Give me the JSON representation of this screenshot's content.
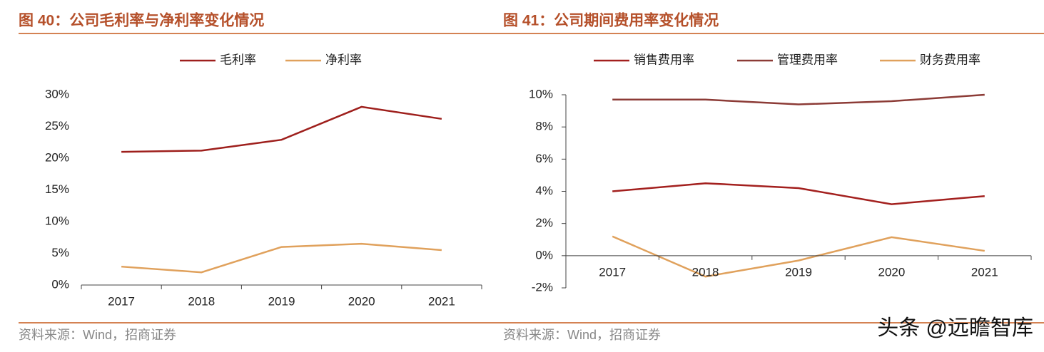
{
  "chart_data": [
    {
      "type": "line",
      "title": "图 40：公司毛利率与净利率变化情况",
      "source": "资料来源：Wind，招商证券",
      "categories": [
        "2017",
        "2018",
        "2019",
        "2020",
        "2021"
      ],
      "series": [
        {
          "name": "毛利率",
          "color": "#9e1f1c",
          "values": [
            21.0,
            21.2,
            22.9,
            28.1,
            26.2
          ]
        },
        {
          "name": "净利率",
          "color": "#e0a15c",
          "values": [
            2.9,
            2.0,
            6.0,
            6.5,
            5.5
          ]
        }
      ],
      "ylim": [
        0,
        30
      ],
      "yticks": [
        {
          "value": 0,
          "label": "0%"
        },
        {
          "value": 5,
          "label": "5%"
        },
        {
          "value": 10,
          "label": "10%"
        },
        {
          "value": 15,
          "label": "15%"
        },
        {
          "value": 20,
          "label": "20%"
        },
        {
          "value": 25,
          "label": "25%"
        },
        {
          "value": 30,
          "label": "30%"
        }
      ],
      "grid": false,
      "legend": "top"
    },
    {
      "type": "line",
      "title": "图 41：公司期间费用率变化情况",
      "source": "资料来源：Wind，招商证券",
      "categories": [
        "2017",
        "2018",
        "2019",
        "2020",
        "2021"
      ],
      "series": [
        {
          "name": "销售费用率",
          "color": "#a3201e",
          "values": [
            4.0,
            4.5,
            4.2,
            3.2,
            3.7
          ]
        },
        {
          "name": "管理费用率",
          "color": "#8c3b36",
          "values": [
            9.7,
            9.7,
            9.4,
            9.6,
            10.0
          ]
        },
        {
          "name": "财务费用率",
          "color": "#e0a15c",
          "values": [
            1.2,
            -1.3,
            -0.3,
            1.15,
            0.3
          ]
        }
      ],
      "ylim": [
        -2,
        10
      ],
      "yticks": [
        {
          "value": -2,
          "label": "-2%"
        },
        {
          "value": 0,
          "label": "0%"
        },
        {
          "value": 2,
          "label": "2%"
        },
        {
          "value": 4,
          "label": "4%"
        },
        {
          "value": 6,
          "label": "6%"
        },
        {
          "value": 8,
          "label": "8%"
        },
        {
          "value": 10,
          "label": "10%"
        }
      ],
      "grid": false,
      "legend": "top"
    }
  ],
  "watermark": "头条 @远瞻智库"
}
